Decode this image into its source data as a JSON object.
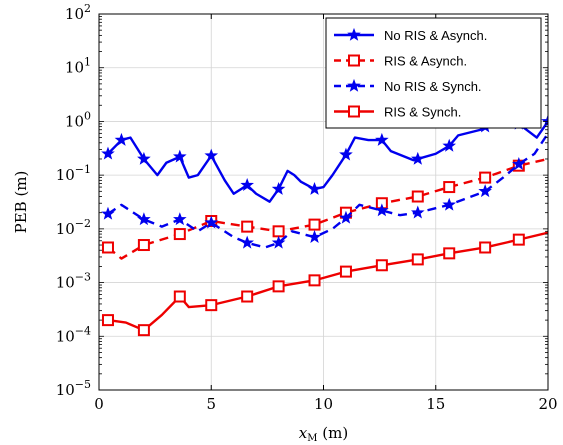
{
  "chart_data": {
    "type": "line",
    "xlabel": "x_M (m)",
    "xlabel_main": "x",
    "xlabel_sub": "M",
    "xlabel_unit": "(m)",
    "ylabel": "PEB (m)",
    "x_scale": "linear",
    "y_scale": "log",
    "xlim": [
      0,
      20
    ],
    "ylim": [
      1e-05,
      100
    ],
    "x_ticks": [
      0,
      5,
      10,
      15,
      20
    ],
    "x_tick_labels": [
      "0",
      "5",
      "10",
      "15",
      "20"
    ],
    "y_ticks": [
      1e-05,
      0.0001,
      0.001,
      0.01,
      0.1,
      1,
      10,
      100
    ],
    "y_tick_labels": [
      {
        "base": "10",
        "exp": "−5"
      },
      {
        "base": "10",
        "exp": "−4"
      },
      {
        "base": "10",
        "exp": "−3"
      },
      {
        "base": "10",
        "exp": "−2"
      },
      {
        "base": "10",
        "exp": "−1"
      },
      {
        "base": "10",
        "exp": "0"
      },
      {
        "base": "10",
        "exp": "1"
      },
      {
        "base": "10",
        "exp": "2"
      }
    ],
    "grid": true,
    "legend_position": "top-right",
    "series": [
      {
        "name": "No RIS & Asynch.",
        "color": "#0000ee",
        "line_style": "solid",
        "marker": "star",
        "x": [
          0.4,
          1.0,
          1.4,
          2.0,
          2.6,
          3.0,
          3.6,
          4.0,
          4.4,
          5.0,
          5.6,
          6.0,
          6.6,
          7.0,
          7.6,
          8.0,
          8.4,
          8.7,
          9.0,
          9.6,
          10.0,
          10.4,
          11.0,
          11.4,
          12.0,
          12.6,
          13.0,
          14.0,
          14.2,
          15.0,
          15.6,
          16.0,
          17.0,
          17.2,
          18.0,
          18.7,
          19.5,
          20.0
        ],
        "y": [
          0.25,
          0.45,
          0.5,
          0.2,
          0.1,
          0.17,
          0.22,
          0.09,
          0.1,
          0.23,
          0.08,
          0.045,
          0.065,
          0.045,
          0.032,
          0.055,
          0.12,
          0.1,
          0.075,
          0.055,
          0.06,
          0.1,
          0.24,
          0.5,
          0.45,
          0.45,
          0.28,
          0.19,
          0.2,
          0.25,
          0.35,
          0.55,
          0.7,
          0.8,
          1.4,
          0.9,
          0.5,
          1.0
        ],
        "marker_x": [
          0.4,
          1.0,
          2.0,
          3.6,
          5.0,
          6.6,
          8.0,
          9.6,
          11.0,
          12.6,
          14.2,
          15.6,
          17.2,
          18.7,
          20.0
        ]
      },
      {
        "name": "RIS & Asynch.",
        "color": "#ee0000",
        "line_style": "dashed",
        "marker": "square",
        "x": [
          0.4,
          1.0,
          2.0,
          3.6,
          5.0,
          6.6,
          8.0,
          9.6,
          11.0,
          12.6,
          14.2,
          15.6,
          17.2,
          18.7,
          20.0
        ],
        "y": [
          0.0045,
          0.0028,
          0.005,
          0.008,
          0.014,
          0.011,
          0.009,
          0.012,
          0.02,
          0.03,
          0.04,
          0.06,
          0.09,
          0.15,
          0.2
        ],
        "marker_x": [
          0.4,
          2.0,
          3.6,
          5.0,
          6.6,
          8.0,
          9.6,
          11.0,
          12.6,
          14.2,
          15.6,
          17.2,
          18.7
        ]
      },
      {
        "name": "No RIS & Synch.",
        "color": "#0000ee",
        "line_style": "dashed",
        "marker": "star",
        "x": [
          0.4,
          1.0,
          2.0,
          2.8,
          3.6,
          4.4,
          5.0,
          6.0,
          6.6,
          7.4,
          8.0,
          8.6,
          9.6,
          10.4,
          11.0,
          11.6,
          12.6,
          13.4,
          14.2,
          15.6,
          17.2,
          18.0,
          18.7,
          19.4,
          20.0
        ],
        "y": [
          0.019,
          0.028,
          0.015,
          0.011,
          0.015,
          0.009,
          0.013,
          0.007,
          0.0055,
          0.0045,
          0.0055,
          0.009,
          0.007,
          0.01,
          0.016,
          0.028,
          0.022,
          0.018,
          0.02,
          0.028,
          0.05,
          0.09,
          0.16,
          0.25,
          0.6
        ],
        "marker_x": [
          0.4,
          2.0,
          3.6,
          5.0,
          6.6,
          8.0,
          9.6,
          11.0,
          12.6,
          14.2,
          15.6,
          17.2,
          18.7
        ]
      },
      {
        "name": "RIS & Synch.",
        "color": "#ee0000",
        "line_style": "solid",
        "marker": "square",
        "x": [
          0.4,
          1.2,
          2.0,
          2.8,
          3.6,
          4.0,
          5.0,
          6.6,
          8.0,
          9.6,
          11.0,
          12.6,
          14.2,
          15.6,
          17.2,
          18.7,
          20.0
        ],
        "y": [
          0.0002,
          0.00018,
          0.00013,
          0.00025,
          0.00055,
          0.00035,
          0.00038,
          0.00055,
          0.00085,
          0.0011,
          0.0016,
          0.0021,
          0.0027,
          0.0035,
          0.0045,
          0.0063,
          0.0085
        ],
        "marker_x": [
          0.4,
          2.0,
          3.6,
          5.0,
          6.6,
          8.0,
          9.6,
          11.0,
          12.6,
          14.2,
          15.6,
          17.2,
          18.7
        ]
      }
    ]
  }
}
